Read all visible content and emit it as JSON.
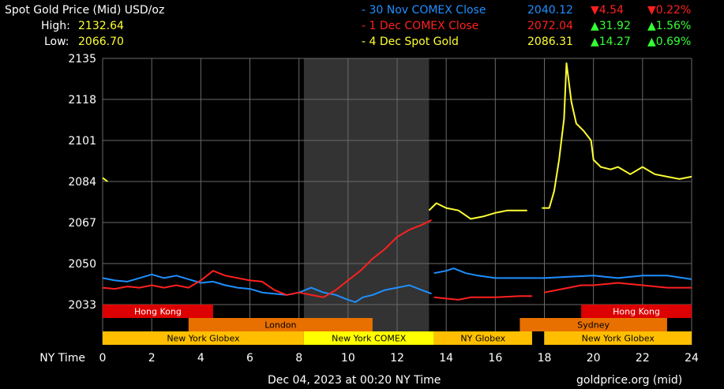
{
  "header": {
    "title": "Spot Gold Price (Mid) USD/oz",
    "high_label": "High:",
    "high_value": "2132.64",
    "low_label": "Low:",
    "low_value": "2066.70"
  },
  "legend": [
    {
      "name": "- 30 Nov COMEX Close",
      "price": "2040.12",
      "change": "▼4.54",
      "pct": "▼0.22%",
      "color": "#1f8fff",
      "dir": "down"
    },
    {
      "name": "- 1 Dec COMEX Close",
      "price": "2072.04",
      "change": "▲31.92",
      "pct": "▲1.56%",
      "color": "#ff2020",
      "dir": "up"
    },
    {
      "name": "- 4 Dec Spot Gold",
      "price": "2086.31",
      "change": "▲14.27",
      "pct": "▲0.69%",
      "color": "#ffff33",
      "dir": "up"
    }
  ],
  "footer": {
    "timestamp": "Dec 04, 2023 at 00:20 NY Time",
    "source": "goldprice.org (mid)",
    "xaxis_title": "NY Time"
  },
  "sessions": [
    {
      "label": "Hong Kong",
      "start": 0,
      "end": 4.5,
      "row": 0,
      "color": "#dd0000",
      "text_color": "#ffffff"
    },
    {
      "label": "Hong Kong",
      "start": 19.5,
      "end": 24,
      "row": 0,
      "color": "#dd0000",
      "text_color": "#ffffff"
    },
    {
      "label": "London",
      "start": 3.5,
      "end": 11,
      "row": 1,
      "color": "#e87000",
      "text_color": "#000000"
    },
    {
      "label": "Sydney",
      "start": 17,
      "end": 23,
      "row": 1,
      "color": "#e87000",
      "text_color": "#000000"
    },
    {
      "label": "New York Globex",
      "start": 0,
      "end": 8.2,
      "row": 2,
      "color": "#ffbf00",
      "text_color": "#000000"
    },
    {
      "label": "New York COMEX",
      "start": 8.2,
      "end": 13.5,
      "row": 2,
      "color": "#ffff00",
      "text_color": "#000000"
    },
    {
      "label": "NY Globex",
      "start": 13.5,
      "end": 17.5,
      "row": 2,
      "color": "#ffbf00",
      "text_color": "#000000"
    },
    {
      "label": "New York Globex",
      "start": 18,
      "end": 24,
      "row": 2,
      "color": "#ffbf00",
      "text_color": "#000000"
    }
  ],
  "chart_data": {
    "type": "line",
    "x_range": [
      0,
      24
    ],
    "y_range": [
      2033,
      2135
    ],
    "x_ticks": [
      0,
      2,
      4,
      6,
      8,
      10,
      12,
      14,
      16,
      18,
      20,
      22,
      24
    ],
    "y_ticks": [
      2033,
      2050,
      2067,
      2084,
      2101,
      2118,
      2135
    ],
    "grid": true,
    "highlight_band": [
      8.2,
      13.3
    ],
    "series": [
      {
        "name": "30 Nov COMEX Close",
        "color": "#1f8fff",
        "segments": [
          [
            [
              0,
              2044
            ],
            [
              0.5,
              2043
            ],
            [
              1,
              2042.5
            ],
            [
              1.5,
              2044
            ],
            [
              2,
              2045.5
            ],
            [
              2.5,
              2044
            ],
            [
              3,
              2045
            ],
            [
              3.5,
              2043.5
            ],
            [
              4,
              2042
            ],
            [
              4.5,
              2042.5
            ],
            [
              5,
              2041
            ],
            [
              5.5,
              2040
            ],
            [
              6,
              2039.5
            ],
            [
              6.5,
              2038
            ],
            [
              7,
              2037.5
            ],
            [
              7.5,
              2037
            ],
            [
              8,
              2038
            ],
            [
              8.5,
              2040
            ],
            [
              9,
              2038
            ],
            [
              9.5,
              2037
            ],
            [
              10,
              2035
            ],
            [
              10.3,
              2034
            ],
            [
              10.6,
              2036
            ],
            [
              11,
              2037
            ],
            [
              11.5,
              2039
            ],
            [
              12,
              2040
            ],
            [
              12.5,
              2041
            ],
            [
              13,
              2039
            ],
            [
              13.4,
              2037.5
            ]
          ],
          [
            [
              13.5,
              2046
            ],
            [
              14,
              2047
            ],
            [
              14.3,
              2048
            ],
            [
              14.8,
              2046
            ],
            [
              15.3,
              2045
            ],
            [
              16,
              2044
            ],
            [
              17,
              2044
            ],
            [
              18,
              2044
            ],
            [
              19,
              2044.5
            ],
            [
              20,
              2045
            ],
            [
              21,
              2044
            ],
            [
              22,
              2045
            ],
            [
              23,
              2045
            ],
            [
              24,
              2043.5
            ]
          ]
        ]
      },
      {
        "name": "1 Dec COMEX Close",
        "color": "#ff2020",
        "segments": [
          [
            [
              0,
              2040
            ],
            [
              0.5,
              2039.5
            ],
            [
              1,
              2040.5
            ],
            [
              1.5,
              2040
            ],
            [
              2,
              2041
            ],
            [
              2.5,
              2040
            ],
            [
              3,
              2041
            ],
            [
              3.5,
              2040
            ],
            [
              4,
              2043
            ],
            [
              4.5,
              2047
            ],
            [
              5,
              2045
            ],
            [
              5.5,
              2044
            ],
            [
              6,
              2043
            ],
            [
              6.5,
              2042.5
            ],
            [
              7,
              2039
            ],
            [
              7.5,
              2037
            ],
            [
              8,
              2038
            ],
            [
              8.5,
              2037
            ],
            [
              9,
              2036
            ],
            [
              9.5,
              2039
            ],
            [
              10,
              2043
            ],
            [
              10.5,
              2047
            ],
            [
              11,
              2052
            ],
            [
              11.5,
              2056
            ],
            [
              12,
              2061
            ],
            [
              12.5,
              2064
            ],
            [
              13,
              2066
            ],
            [
              13.4,
              2068
            ]
          ],
          [
            [
              13.5,
              2036
            ],
            [
              14,
              2035.5
            ],
            [
              14.5,
              2035
            ],
            [
              15,
              2036
            ],
            [
              16,
              2036
            ],
            [
              17,
              2036.5
            ],
            [
              17.5,
              2036.5
            ]
          ],
          [
            [
              18,
              2038
            ],
            [
              18.5,
              2039
            ],
            [
              19,
              2040
            ],
            [
              19.5,
              2041
            ],
            [
              20,
              2041
            ],
            [
              21,
              2042
            ],
            [
              22,
              2041
            ],
            [
              23,
              2040
            ],
            [
              24,
              2040
            ]
          ]
        ]
      },
      {
        "name": "4 Dec Spot Gold",
        "color": "#ffff33",
        "segments": [
          [
            [
              0,
              2085.5
            ],
            [
              0.2,
              2084
            ]
          ],
          [
            [
              13.3,
              2072
            ],
            [
              13.6,
              2075
            ],
            [
              14,
              2073
            ],
            [
              14.5,
              2072
            ],
            [
              15,
              2068.5
            ],
            [
              15.5,
              2069.5
            ],
            [
              16,
              2071
            ],
            [
              16.5,
              2072
            ],
            [
              17,
              2072
            ],
            [
              17.3,
              2072
            ]
          ],
          [
            [
              17.9,
              2073
            ],
            [
              18.2,
              2073
            ],
            [
              18.4,
              2080
            ],
            [
              18.6,
              2093
            ],
            [
              18.8,
              2110
            ],
            [
              18.9,
              2133
            ],
            [
              19.1,
              2117
            ],
            [
              19.3,
              2108
            ],
            [
              19.6,
              2105
            ],
            [
              19.9,
              2101
            ],
            [
              20,
              2093
            ],
            [
              20.3,
              2090
            ],
            [
              20.7,
              2089
            ],
            [
              21,
              2090
            ],
            [
              21.5,
              2087
            ],
            [
              22,
              2090
            ],
            [
              22.5,
              2087
            ],
            [
              23,
              2086
            ],
            [
              23.5,
              2085
            ],
            [
              24,
              2086
            ]
          ]
        ]
      }
    ]
  }
}
